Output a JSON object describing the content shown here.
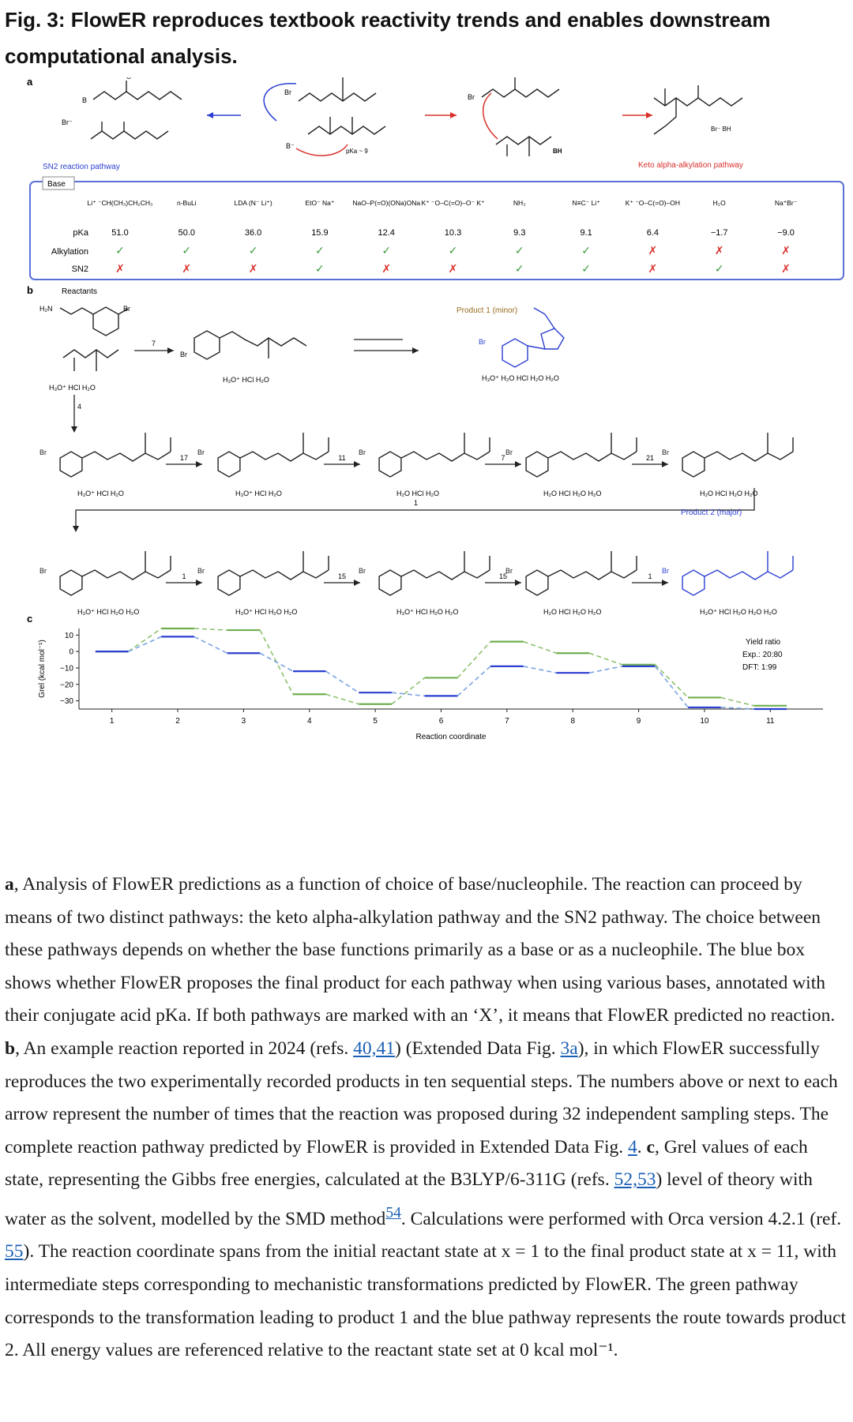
{
  "figure_title": "Fig. 3: FlowER reproduces textbook reactivity trends and enables downstream computational analysis.",
  "panel_a": {
    "label": "a",
    "sn2_pathway_label": "SN2 reaction pathway",
    "keto_pathway_label": "Keto alpha-alkylation pathway",
    "pka_note": "pKa ~ 9",
    "base_header": "Base",
    "row_labels": [
      "pKa",
      "Alkylation",
      "SN2"
    ],
    "bases": [
      {
        "name": "Li⁺ ⁻CH(CH₃)CH₂CH₃",
        "pka": "51.0",
        "alkylation": "✓",
        "sn2": "✗"
      },
      {
        "name": "n-BuLi",
        "pka": "50.0",
        "alkylation": "✓",
        "sn2": "✗"
      },
      {
        "name": "LDA (N⁻ Li⁺)",
        "pka": "36.0",
        "alkylation": "✓",
        "sn2": "✗"
      },
      {
        "name": "EtO⁻ Na⁺",
        "pka": "15.9",
        "alkylation": "✓",
        "sn2": "✓"
      },
      {
        "name": "NaO–P(=O)(ONa)ONa",
        "pka": "12.4",
        "alkylation": "✓",
        "sn2": "✗"
      },
      {
        "name": "K⁺ ⁻O–C(=O)–O⁻ K⁺",
        "pka": "10.3",
        "alkylation": "✓",
        "sn2": "✗"
      },
      {
        "name": "NH₃",
        "pka": "9.3",
        "alkylation": "✓",
        "sn2": "✓"
      },
      {
        "name": "N≡C⁻ Li⁺",
        "pka": "9.1",
        "alkylation": "✓",
        "sn2": "✓"
      },
      {
        "name": "K⁺ ⁻O–C(=O)–OH",
        "pka": "6.4",
        "alkylation": "✗",
        "sn2": "✗"
      },
      {
        "name": "H₂O",
        "pka": "−1.7",
        "alkylation": "✗",
        "sn2": "✓"
      },
      {
        "name": "Na⁺Br⁻",
        "pka": "−9.0",
        "alkylation": "✗",
        "sn2": "✗"
      }
    ]
  },
  "panel_b": {
    "label": "b",
    "reactants_label": "Reactants",
    "product1_label": "Product 1 (minor)",
    "product2_label": "Product 2 (major)",
    "spectators": {
      "r0": "H₃O⁺ HCl H₂O",
      "r1": "H₃O⁺ HCl H₂O",
      "p1": "H₃O⁺ H₂O HCl H₂O H₂O",
      "row2": [
        "H₃O⁺ HCl H₂O",
        "H₃O⁺ HCl H₂O",
        "H₂O HCl H₂O",
        "H₂O HCl H₂O H₂O",
        "H₂O HCl H₂O H₂O"
      ],
      "row3": [
        "H₃O⁺ HCl H₂O H₂O",
        "H₃O⁺ HCl H₂O H₂O",
        "H₃O⁺ HCl H₂O H₂O",
        "H₂O HCl H₂O H₂O",
        "H₃O⁺ HCl H₂O H₂O H₂O"
      ]
    },
    "arrow_counts": {
      "first": "7",
      "down": "4",
      "row2": [
        "17",
        "11",
        "7",
        "21"
      ],
      "turn": "1",
      "row3": [
        "1",
        "15",
        "15",
        "1"
      ]
    }
  },
  "panel_c": {
    "label": "c",
    "yield_ratio": {
      "title": "Yield ratio",
      "exp": "Exp.: 20:80",
      "dft": "DFT: 1:99"
    },
    "colors": {
      "green": "#6fae4f",
      "blue": "#2b3fd1",
      "dash_green": "#8cc06c",
      "dash_blue": "#7aa3e0"
    }
  },
  "chart_data": {
    "type": "line",
    "xlabel": "Reaction coordinate",
    "ylabel": "Grel (kcal mol⁻¹)",
    "x": [
      1,
      2,
      3,
      4,
      5,
      6,
      7,
      8,
      9,
      10,
      11
    ],
    "xticks": [
      "1",
      "2",
      "3",
      "4",
      "5",
      "6",
      "7",
      "8",
      "9",
      "10",
      "11"
    ],
    "yticks": [
      "10",
      "0",
      "−10",
      "−20",
      "−30"
    ],
    "ylim": [
      -35,
      14
    ],
    "xlim": [
      0.5,
      11.8
    ],
    "grid": false,
    "legend": "none",
    "series": [
      {
        "color": "green",
        "values": [
          0,
          14,
          13,
          -26,
          -32,
          -16,
          6,
          -1,
          -8,
          -28,
          -33
        ]
      },
      {
        "color": "blue",
        "values": [
          0,
          9,
          -1,
          -12,
          -25,
          -27,
          -9,
          -13,
          -9,
          -34,
          -35
        ]
      }
    ]
  },
  "caption": {
    "a_label": "a",
    "a_text": ", Analysis of FlowER predictions as a function of choice of base/nucleophile. The reaction can proceed by means of two distinct pathways: the keto alpha-alkylation pathway and the SN2 pathway. The choice between these pathways depends on whether the base functions primarily as a base or as a nucleophile. The blue box shows whether FlowER proposes the final product for each pathway when using various bases, annotated with their conjugate acid pKa. If both pathways are marked with an ‘X’, it means that FlowER predicted no reaction. ",
    "b_label": "b",
    "b_text_1": ", An example reaction reported in 2024 (refs. ",
    "b_refs": "40,41",
    "b_text_2": ") (Extended Data Fig. ",
    "b_fig": "3a",
    "b_text_3": "), in which FlowER successfully reproduces the two experimentally recorded products in ten sequential steps. The numbers above or next to each arrow represent the number of times that the reaction was proposed during 32 independent sampling steps. The complete reaction pathway predicted by FlowER is provided in Extended Data Fig. ",
    "b_fig2": "4",
    "b_text_4": ". ",
    "c_label": "c",
    "c_text_1": ", Grel values of each state, representing the Gibbs free energies, calculated at the B3LYP/6-311G (refs. ",
    "c_refs": "52,53",
    "c_text_2": ") level of theory with water as the solvent, modelled by the SMD method",
    "c_ref54": "54",
    "c_text_3": ". Calculations were performed with Orca version 4.2.1 (ref. ",
    "c_ref55": "55",
    "c_text_4": "). The reaction coordinate spans from the initial reactant state at x = 1 to the final product state at x = 11, with intermediate steps corresponding to mechanistic transformations predicted by FlowER. The green pathway corresponds to the transformation leading to product 1 and the blue pathway represents the route towards product 2. All energy values are referenced relative to the reactant state set at 0 kcal mol⁻¹."
  }
}
